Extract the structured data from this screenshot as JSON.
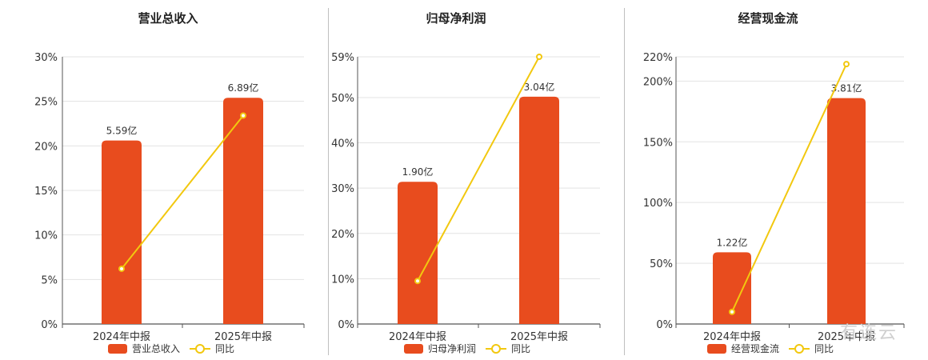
{
  "colors": {
    "bar": "#e84c1e",
    "line": "#f2c80f",
    "grid": "#e3e3e3",
    "axis": "#555555"
  },
  "watermark": "有连云",
  "chart_data": [
    {
      "type": "bar",
      "title": "营业总收入",
      "categories": [
        "2024年中报",
        "2025年中报"
      ],
      "series": [
        {
          "name": "营业总收入",
          "type": "bar",
          "values": [
            5.59,
            6.89
          ],
          "labels": [
            "5.59亿",
            "6.89亿"
          ]
        },
        {
          "name": "同比",
          "type": "line",
          "values": [
            6.2,
            23.4
          ]
        }
      ],
      "ylim": [
        0,
        30
      ],
      "yticks": [
        "0%",
        "5%",
        "10%",
        "15%",
        "20%",
        "25%",
        "30%"
      ],
      "bar_pct": [
        20.6,
        25.4
      ],
      "legend": "bottom"
    },
    {
      "type": "bar",
      "title": "归母净利润",
      "categories": [
        "2024年中报",
        "2025年中报"
      ],
      "series": [
        {
          "name": "归母净利润",
          "type": "bar",
          "values": [
            1.9,
            3.04
          ],
          "labels": [
            "1.90亿",
            "3.04亿"
          ]
        },
        {
          "name": "同比",
          "type": "line",
          "values": [
            9.5,
            59
          ]
        }
      ],
      "ylim": [
        0,
        59
      ],
      "yticks": [
        "0%",
        "10%",
        "20%",
        "30%",
        "40%",
        "50%",
        "59%"
      ],
      "bar_pct": [
        31.4,
        50.2
      ],
      "legend": "bottom"
    },
    {
      "type": "bar",
      "title": "经营现金流",
      "categories": [
        "2024年中报",
        "2025年中报"
      ],
      "series": [
        {
          "name": "经营现金流",
          "type": "bar",
          "values": [
            1.22,
            3.81
          ],
          "labels": [
            "1.22亿",
            "3.81亿"
          ]
        },
        {
          "name": "同比",
          "type": "line",
          "values": [
            10,
            214
          ]
        }
      ],
      "ylim": [
        0,
        220
      ],
      "yticks": [
        "0%",
        "50%",
        "100%",
        "150%",
        "200%",
        "220%"
      ],
      "ytick_values": [
        0,
        50,
        100,
        150,
        200,
        220
      ],
      "bar_pct": [
        59,
        186
      ],
      "legend": "bottom"
    }
  ]
}
